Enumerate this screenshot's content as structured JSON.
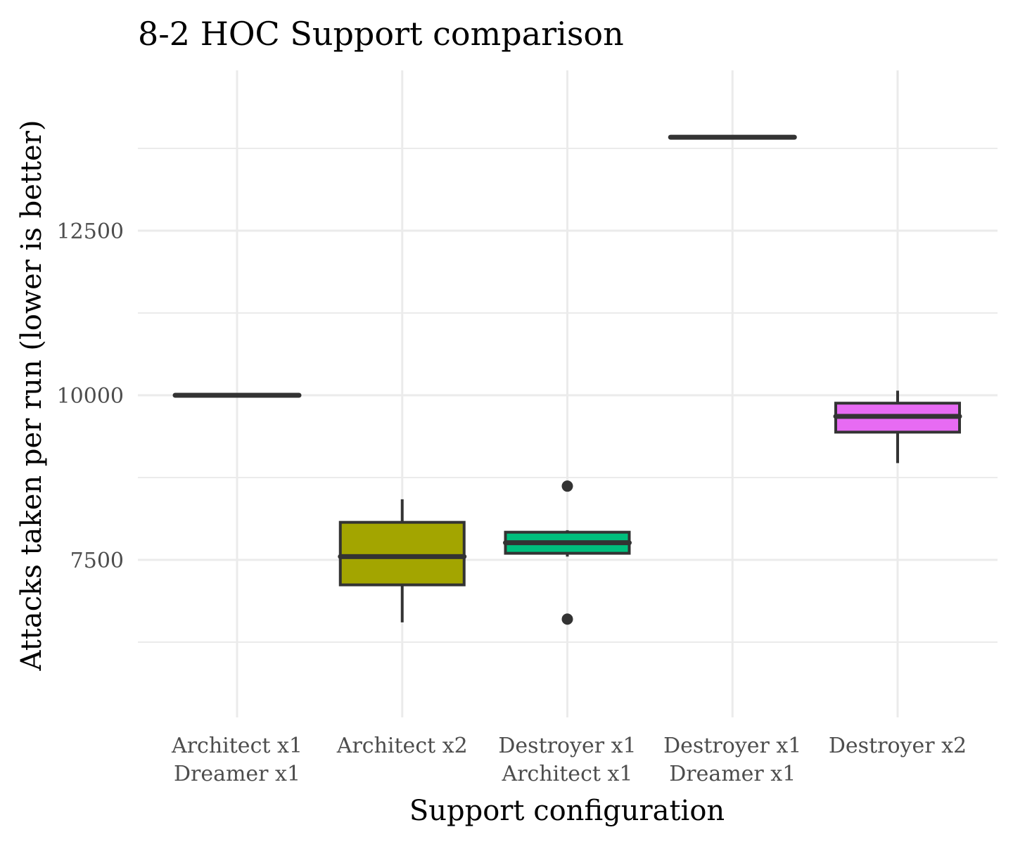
{
  "chart_data": {
    "type": "boxplot",
    "title": "8-2 HOC Support comparison",
    "xlabel": "Support configuration",
    "ylabel": "Attacks taken per run (lower is better)",
    "ylim": [
      5000,
      14900
    ],
    "y_major_ticks": [
      7500,
      10000,
      12500
    ],
    "y_minor_ticks": [
      6250,
      8750,
      11250,
      13750
    ],
    "y_tick_labels": [
      "7500",
      "10000",
      "12500"
    ],
    "grid": true,
    "legend": "none",
    "categories": [
      {
        "lines": [
          "Architect x1",
          "Dreamer x1"
        ],
        "color": "#F8766D",
        "min": 10000,
        "q1": 10000,
        "median": 10000,
        "q3": 10000,
        "max": 10000,
        "outliers": []
      },
      {
        "lines": [
          "Architect x2"
        ],
        "color": "#A3A500",
        "min": 6550,
        "q1": 7120,
        "median": 7550,
        "q3": 8070,
        "max": 8420,
        "outliers": []
      },
      {
        "lines": [
          "Destroyer x1",
          "Architect x1"
        ],
        "color": "#00BF7D",
        "min": 7550,
        "q1": 7600,
        "median": 7760,
        "q3": 7920,
        "max": 7950,
        "outliers": [
          8620,
          6600
        ]
      },
      {
        "lines": [
          "Destroyer x1",
          "Dreamer x1"
        ],
        "color": "#00B0F6",
        "min": 13920,
        "q1": 13920,
        "median": 13920,
        "q3": 13920,
        "max": 13920,
        "outliers": []
      },
      {
        "lines": [
          "Destroyer x2"
        ],
        "color": "#E76BF3",
        "min": 8970,
        "q1": 9440,
        "median": 9680,
        "q3": 9880,
        "max": 10070,
        "outliers": []
      }
    ]
  }
}
